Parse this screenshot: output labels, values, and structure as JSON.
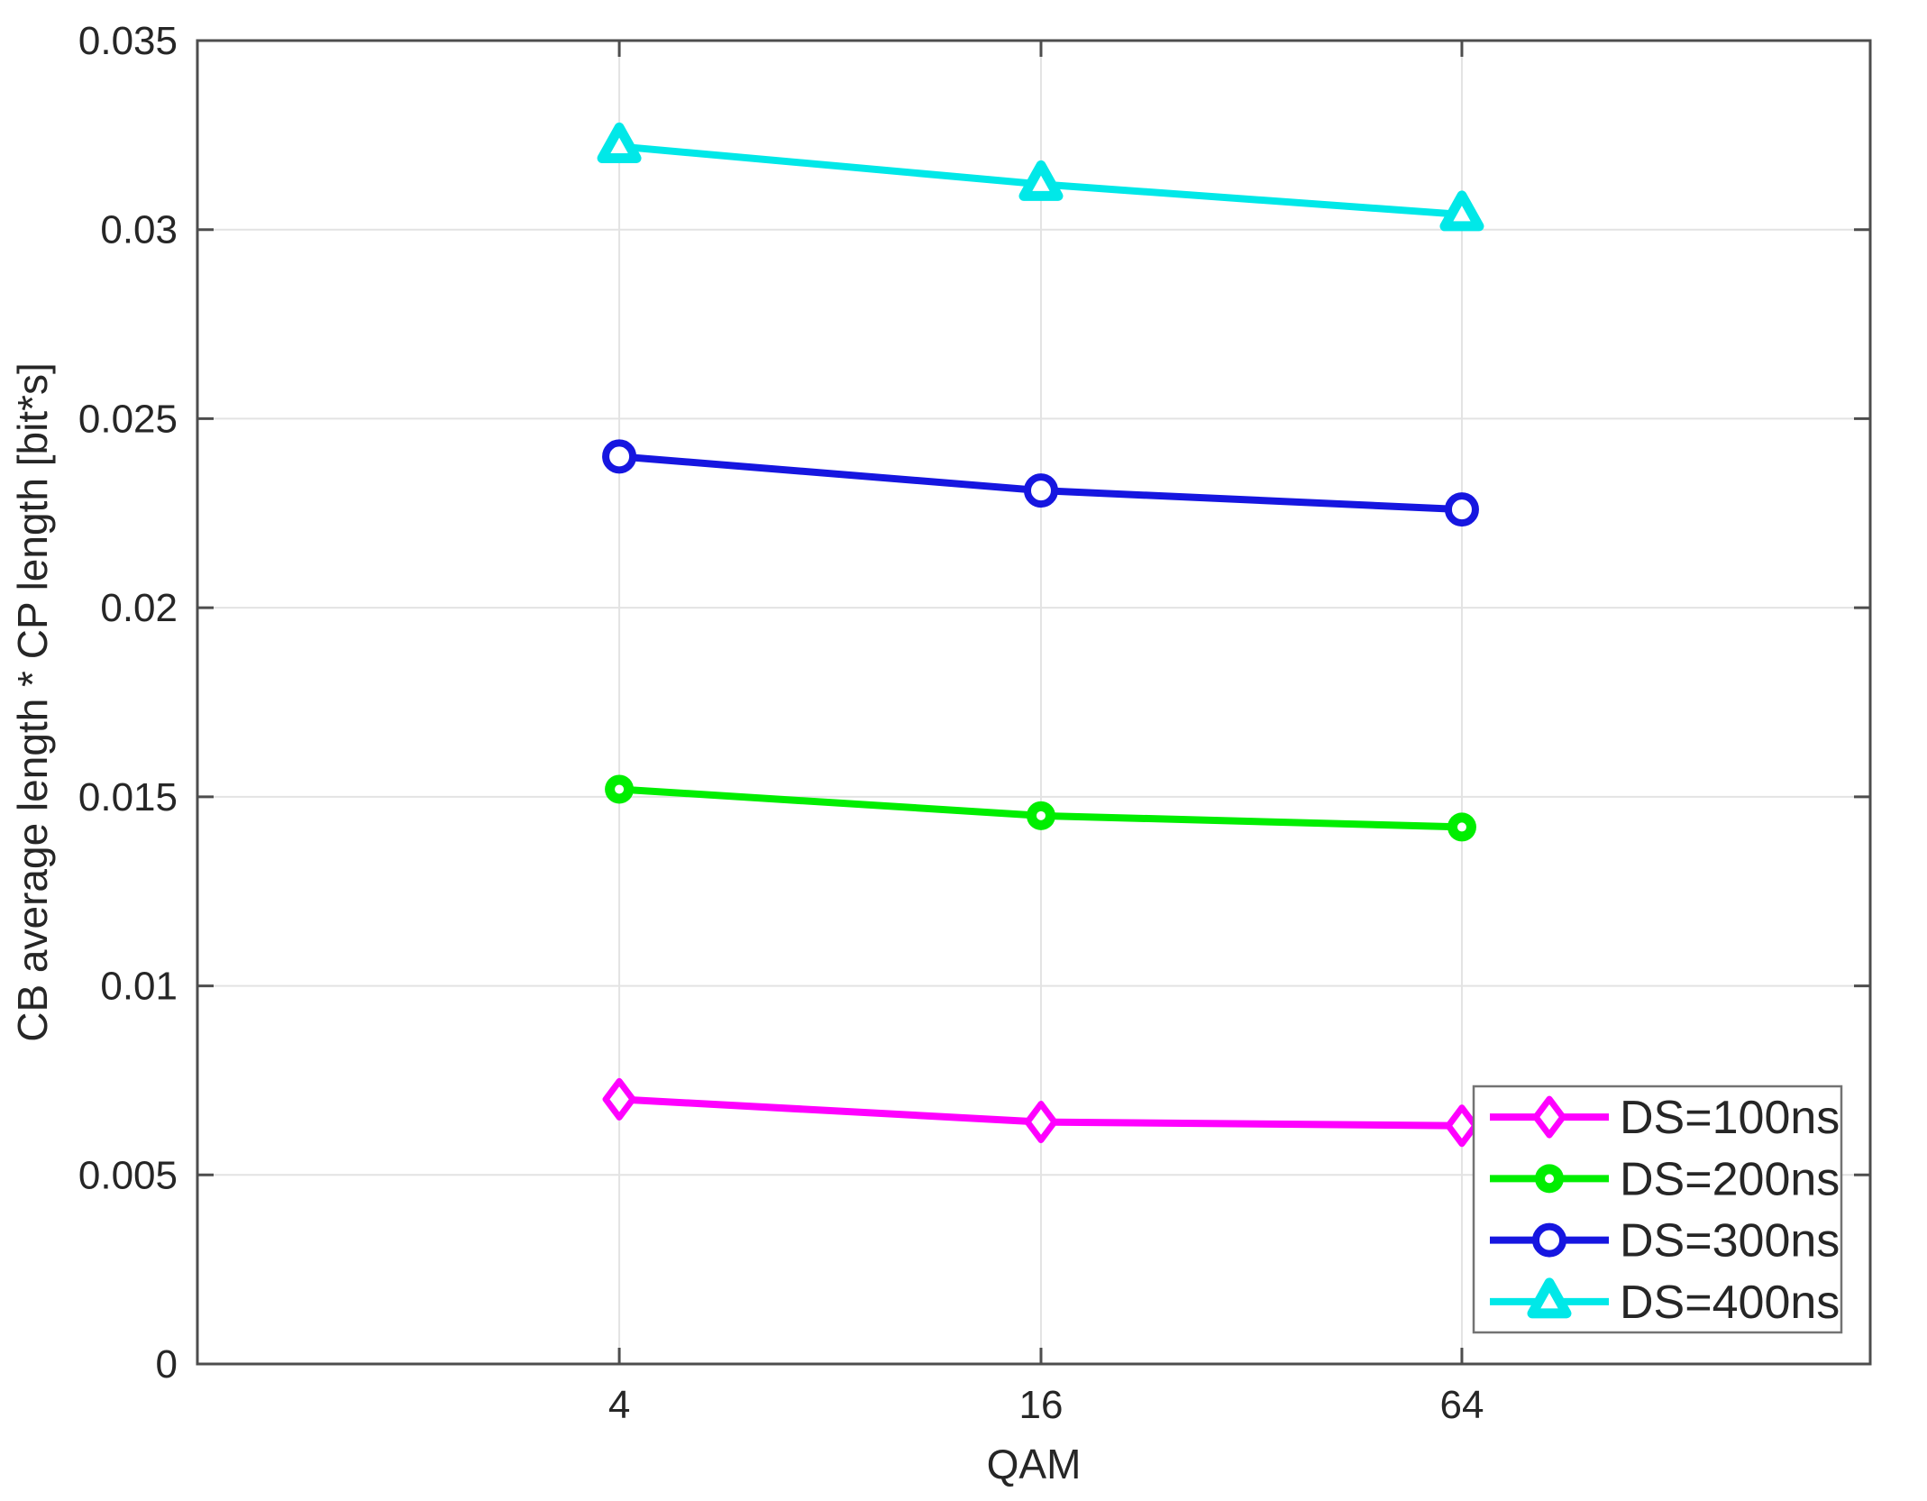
{
  "figure": {
    "background": "#FFFFFF"
  },
  "chart_data": {
    "type": "line",
    "title": "",
    "xlabel": "QAM",
    "ylabel": "CB average length * CP length [bit*s]",
    "x_scale": "log2-categorical",
    "categories": [
      "4",
      "16",
      "64"
    ],
    "y_ticks": [
      "0",
      "0.005",
      "0.01",
      "0.015",
      "0.02",
      "0.025",
      "0.03",
      "0.035"
    ],
    "y_tick_values": [
      0,
      0.005,
      0.01,
      0.015,
      0.02,
      0.025,
      0.03,
      0.035
    ],
    "ylim": [
      0,
      0.035
    ],
    "grid": true,
    "box": true,
    "legend": {
      "position": "bottom-right",
      "entries": [
        "DS=100ns",
        "DS=200ns",
        "DS=300ns",
        "DS=400ns"
      ]
    },
    "series": [
      {
        "name": "DS=100ns",
        "color": "#FF00FF",
        "marker": "open-diamond",
        "values": [
          0.007,
          0.0064,
          0.0063
        ]
      },
      {
        "name": "DS=200ns",
        "color": "#00EE00",
        "marker": "filled-circle",
        "values": [
          0.0152,
          0.0145,
          0.0142
        ]
      },
      {
        "name": "DS=300ns",
        "color": "#1616E0",
        "marker": "open-circle",
        "values": [
          0.024,
          0.0231,
          0.0226
        ]
      },
      {
        "name": "DS=400ns",
        "color": "#00E8E8",
        "marker": "filled-triangle",
        "values": [
          0.0322,
          0.0312,
          0.0304
        ]
      }
    ],
    "colors": {
      "axis": "#4D4D4D",
      "grid": "#E3E3E3",
      "text": "#262626",
      "legend_border": "#737373",
      "background": "#FFFFFF"
    }
  }
}
